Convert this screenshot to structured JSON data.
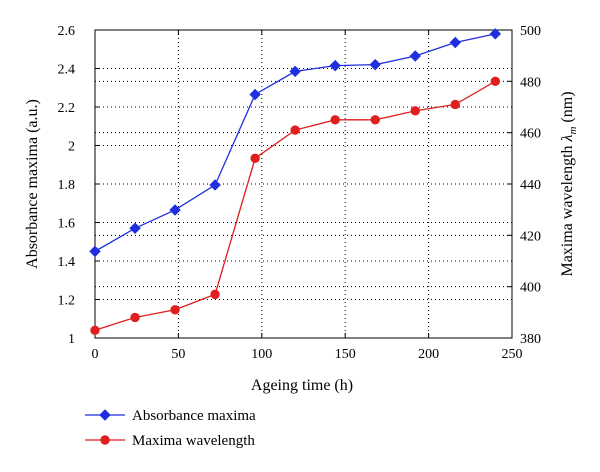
{
  "chart_data": {
    "type": "line",
    "x": [
      0,
      24,
      48,
      72,
      96,
      120,
      144,
      168,
      192,
      216,
      240
    ],
    "xlabel": "Ageing time (h)",
    "xlim": [
      0,
      250
    ],
    "xticks": [
      "0",
      "50",
      "100",
      "150",
      "200",
      "250"
    ],
    "ylabel": "Absorbance maxima (a.u.)",
    "ylim": [
      1,
      2.6
    ],
    "yticks": [
      "1",
      "1.2",
      "1.4",
      "1.6",
      "1.8",
      "2",
      "2.2",
      "2.4",
      "2.6"
    ],
    "y2label_text": "Maxima wavelength ",
    "y2label_symbol": "λ",
    "y2label_sub": "m",
    "y2label_units": " (nm)",
    "y2lim": [
      380,
      500
    ],
    "y2ticks": [
      "380",
      "400",
      "420",
      "440",
      "460",
      "480",
      "500"
    ],
    "grid": true,
    "legend_position": "bottom-left",
    "series": [
      {
        "name": "Absorbance maxima",
        "axis": "left",
        "color": "#1f2fe0",
        "marker": "diamond",
        "values": [
          1.45,
          1.57,
          1.665,
          1.795,
          2.265,
          2.385,
          2.415,
          2.42,
          2.465,
          2.535,
          2.58
        ]
      },
      {
        "name": "Maxima wavelength",
        "axis": "right",
        "color": "#e01f1f",
        "marker": "circle",
        "values": [
          383,
          388,
          391,
          397,
          450,
          461,
          465,
          465,
          468.5,
          471,
          480
        ]
      }
    ]
  }
}
